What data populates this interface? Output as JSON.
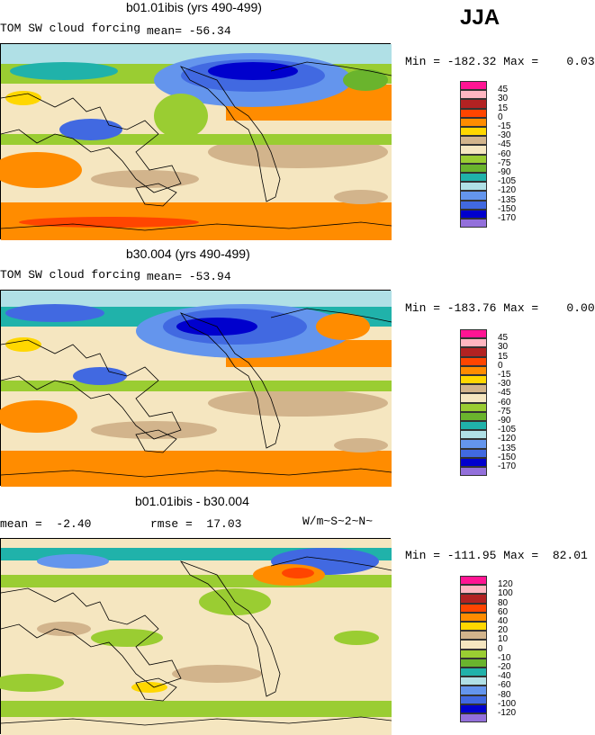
{
  "season": "JJA",
  "units": "W/m~S~2~N~",
  "panels": [
    {
      "title": "b01.01ibis (yrs 490-499)",
      "left_label": "TOM SW cloud forcing",
      "stat_label": "mean= -56.34",
      "stat2_label": "",
      "min_max": "Min = -182.32 Max =    0.03"
    },
    {
      "title": "b30.004 (yrs 490-499)",
      "left_label": "TOM SW cloud forcing",
      "stat_label": "mean= -53.94",
      "stat2_label": "",
      "min_max": "Min = -183.76 Max =    0.00"
    },
    {
      "title": "b01.01ibis - b30.004",
      "left_label": "mean =  -2.40",
      "stat_label": "",
      "stat2_label": "rmse =  17.03",
      "min_max": "Min = -111.95 Max =  82.01"
    }
  ],
  "chart_data": [
    {
      "type": "heatmap",
      "title": "b01.01ibis (yrs 490-499)",
      "variable": "TOM SW cloud forcing",
      "units": "W/m~S~2~N~",
      "mean": -56.34,
      "min": -182.32,
      "max": 0.03,
      "legend_levels": [
        "45",
        "30",
        "15",
        "0",
        "-15",
        "-30",
        "-45",
        "-60",
        "-75",
        "-90",
        "-105",
        "-120",
        "-135",
        "-150",
        "-170"
      ],
      "legend_colors": [
        "#ff1493",
        "#ffb6c1",
        "#b22222",
        "#ff4500",
        "#ff8c00",
        "#ffd700",
        "#d2b48c",
        "#f5e6c0",
        "#9acd32",
        "#6ab42d",
        "#20b2aa",
        "#b0e0e6",
        "#6495ed",
        "#4169e1",
        "#0000cd",
        "#9370db"
      ]
    },
    {
      "type": "heatmap",
      "title": "b30.004 (yrs 490-499)",
      "variable": "TOM SW cloud forcing",
      "units": "W/m~S~2~N~",
      "mean": -53.94,
      "min": -183.76,
      "max": 0.0,
      "legend_levels": [
        "45",
        "30",
        "15",
        "0",
        "-15",
        "-30",
        "-45",
        "-60",
        "-75",
        "-90",
        "-105",
        "-120",
        "-135",
        "-150",
        "-170"
      ],
      "legend_colors": [
        "#ff1493",
        "#ffb6c1",
        "#b22222",
        "#ff4500",
        "#ff8c00",
        "#ffd700",
        "#d2b48c",
        "#f5e6c0",
        "#9acd32",
        "#6ab42d",
        "#20b2aa",
        "#b0e0e6",
        "#6495ed",
        "#4169e1",
        "#0000cd",
        "#9370db"
      ]
    },
    {
      "type": "heatmap",
      "title": "b01.01ibis - b30.004",
      "units": "W/m~S~2~N~",
      "mean": -2.4,
      "rmse": 17.03,
      "min": -111.95,
      "max": 82.01,
      "legend_levels": [
        "120",
        "100",
        "80",
        "60",
        "40",
        "20",
        "10",
        "0",
        "-10",
        "-20",
        "-40",
        "-60",
        "-80",
        "-100",
        "-120"
      ],
      "legend_colors": [
        "#ff1493",
        "#ffb6c1",
        "#b22222",
        "#ff4500",
        "#ff8c00",
        "#ffd700",
        "#d2b48c",
        "#f5e6c0",
        "#9acd32",
        "#6ab42d",
        "#20b2aa",
        "#b0e0e6",
        "#6495ed",
        "#4169e1",
        "#0000cd",
        "#9370db"
      ]
    }
  ]
}
